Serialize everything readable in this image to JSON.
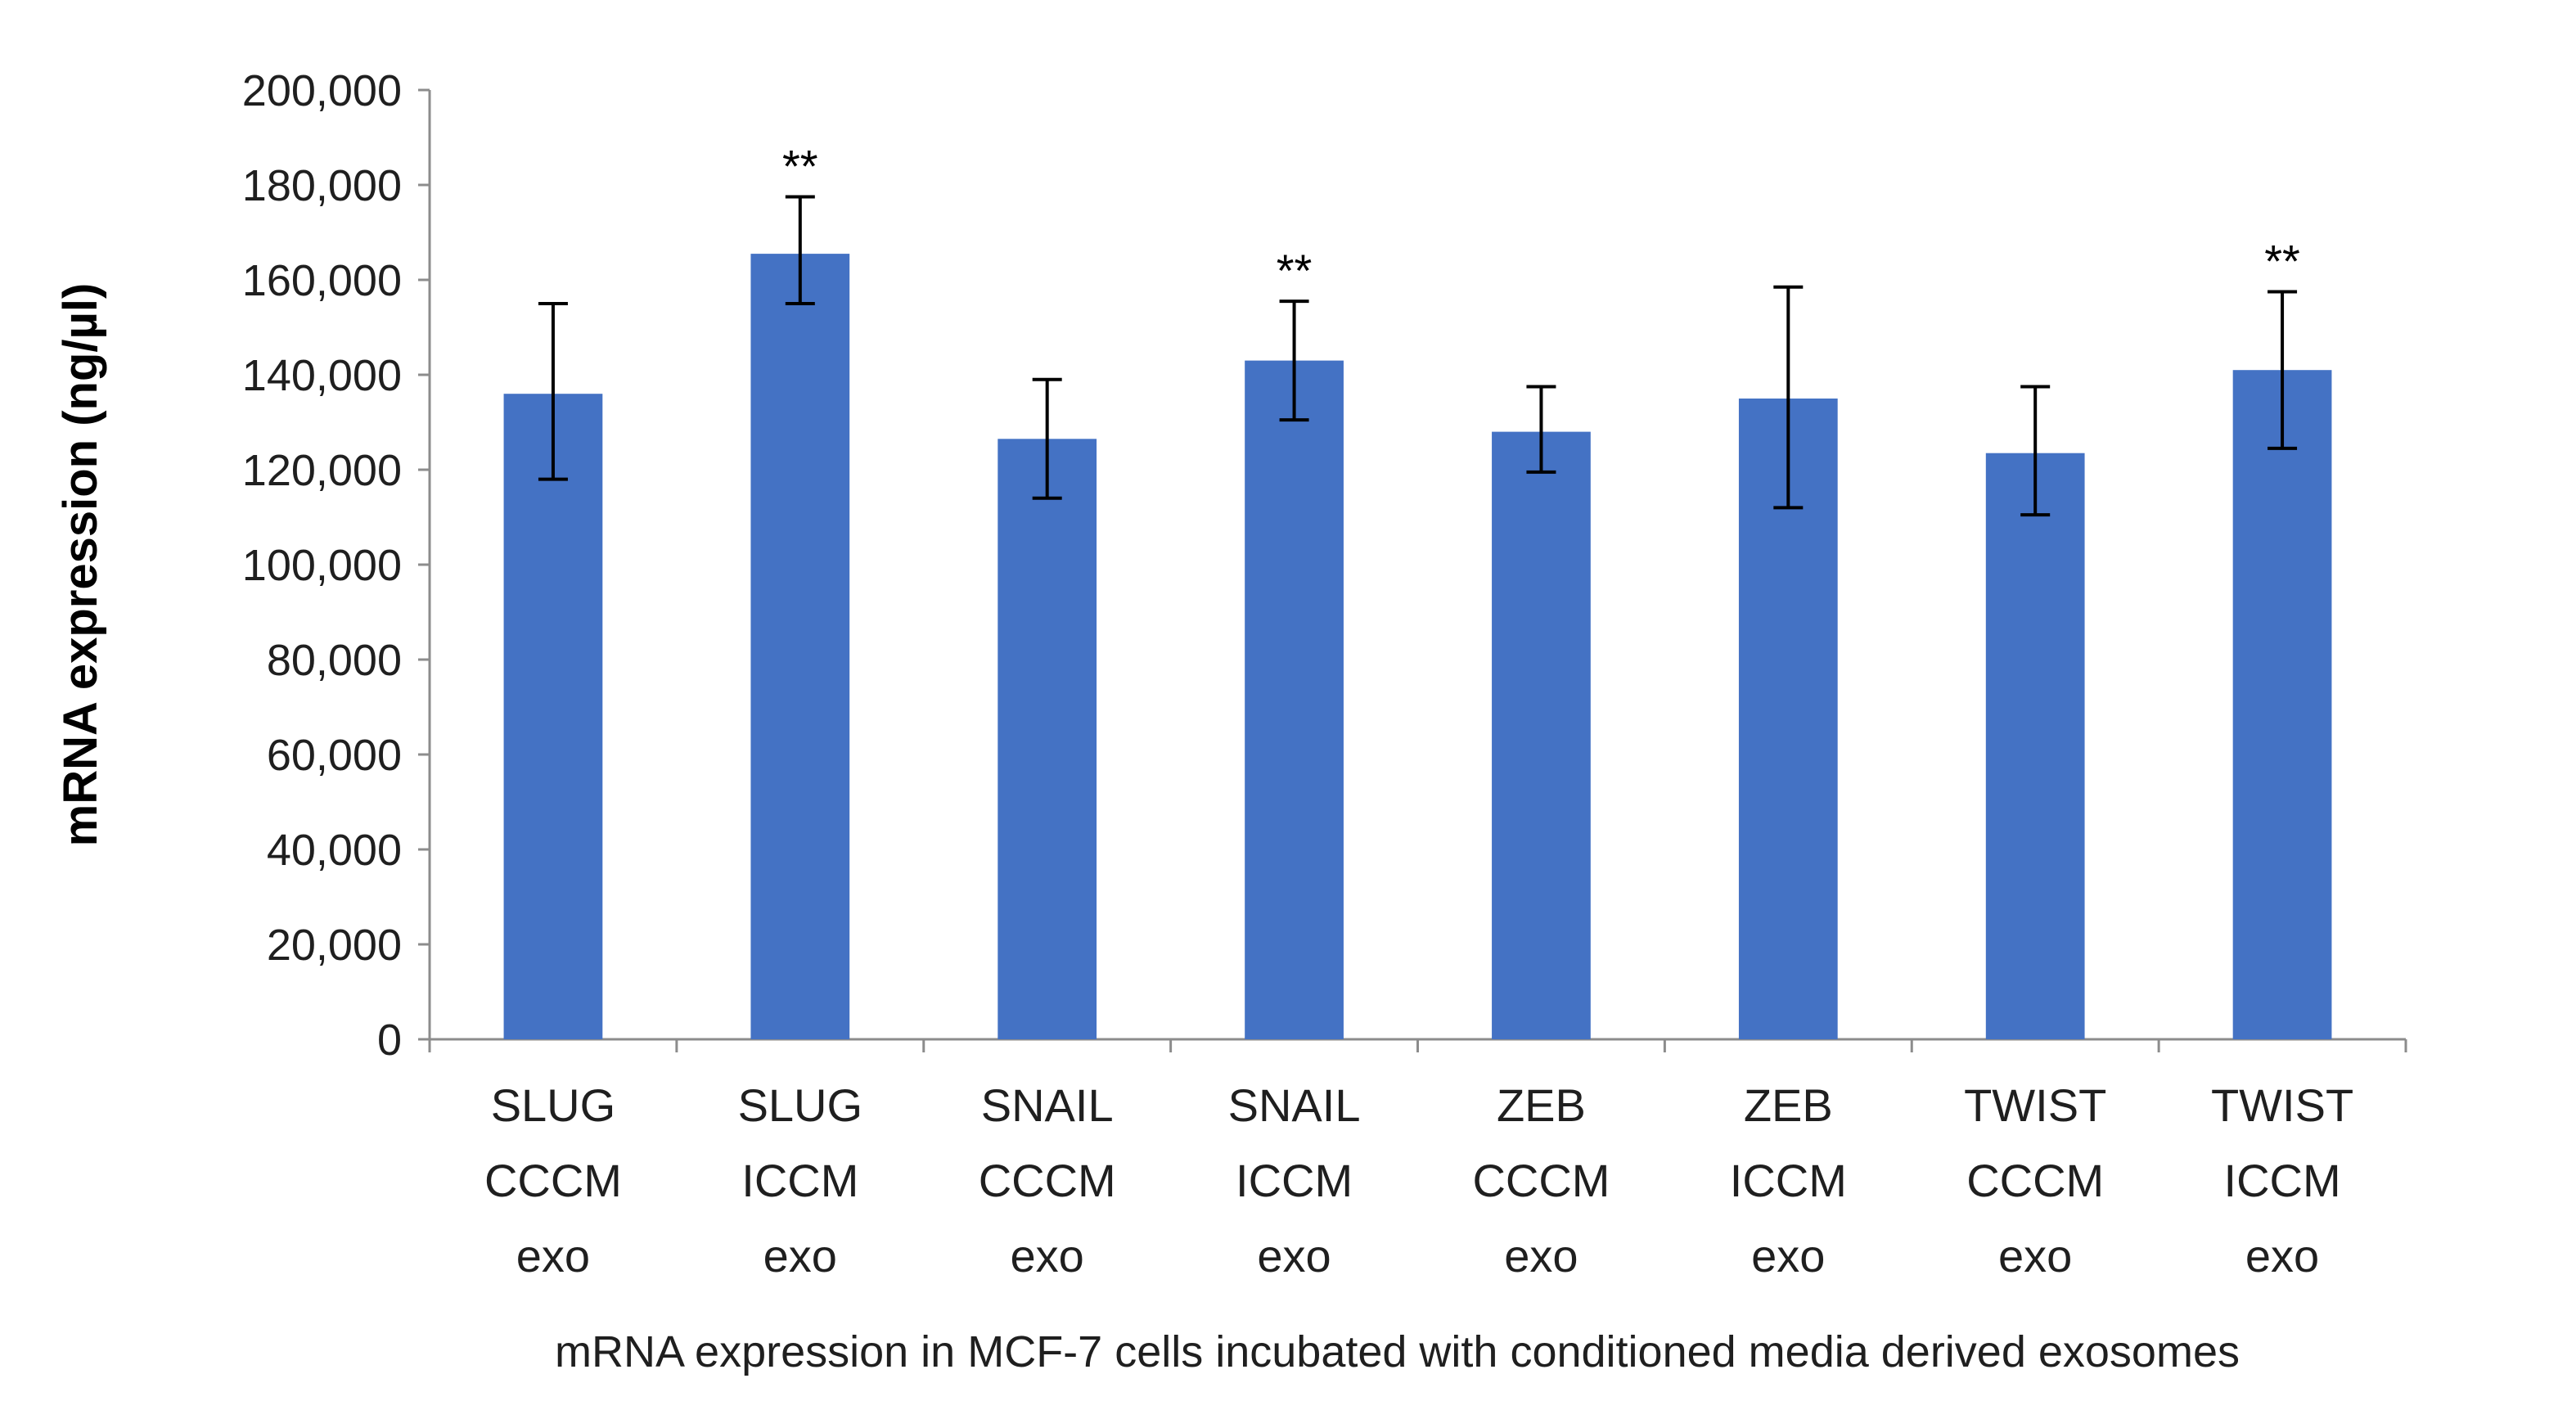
{
  "chart_data": {
    "type": "bar",
    "title": "",
    "xlabel": "mRNA expression in MCF-7 cells incubated with conditioned media derived exosomes",
    "ylabel": "mRNA expression (ng/µl)",
    "ylim": [
      0,
      200000
    ],
    "yticks": [
      0,
      20000,
      40000,
      60000,
      80000,
      100000,
      120000,
      140000,
      160000,
      180000,
      200000
    ],
    "ytick_labels": [
      "0",
      "20,000",
      "40,000",
      "60,000",
      "80,000",
      "100,000",
      "120,000",
      "140,000",
      "160,000",
      "180,000",
      "200,000"
    ],
    "categories": [
      [
        "SLUG",
        "CCCM",
        "exo"
      ],
      [
        "SLUG",
        "ICCM",
        "exo"
      ],
      [
        "SNAIL",
        "CCCM",
        "exo"
      ],
      [
        "SNAIL",
        "ICCM",
        "exo"
      ],
      [
        "ZEB",
        "CCCM",
        "exo"
      ],
      [
        "ZEB",
        "ICCM",
        "exo"
      ],
      [
        "TWIST",
        "CCCM",
        "exo"
      ],
      [
        "TWIST",
        "ICCM",
        "exo"
      ]
    ],
    "values": [
      136000,
      165500,
      126500,
      143000,
      128000,
      135000,
      123500,
      141000
    ],
    "error_low": [
      118000,
      155000,
      114000,
      130500,
      119500,
      112000,
      110500,
      124500
    ],
    "error_high": [
      155000,
      177500,
      139000,
      155500,
      137500,
      158500,
      137500,
      157500
    ],
    "significance": [
      "",
      "**",
      "",
      "**",
      "",
      "",
      "",
      "**"
    ],
    "bar_color": "#4472C4",
    "grid": false,
    "legend": "none"
  }
}
